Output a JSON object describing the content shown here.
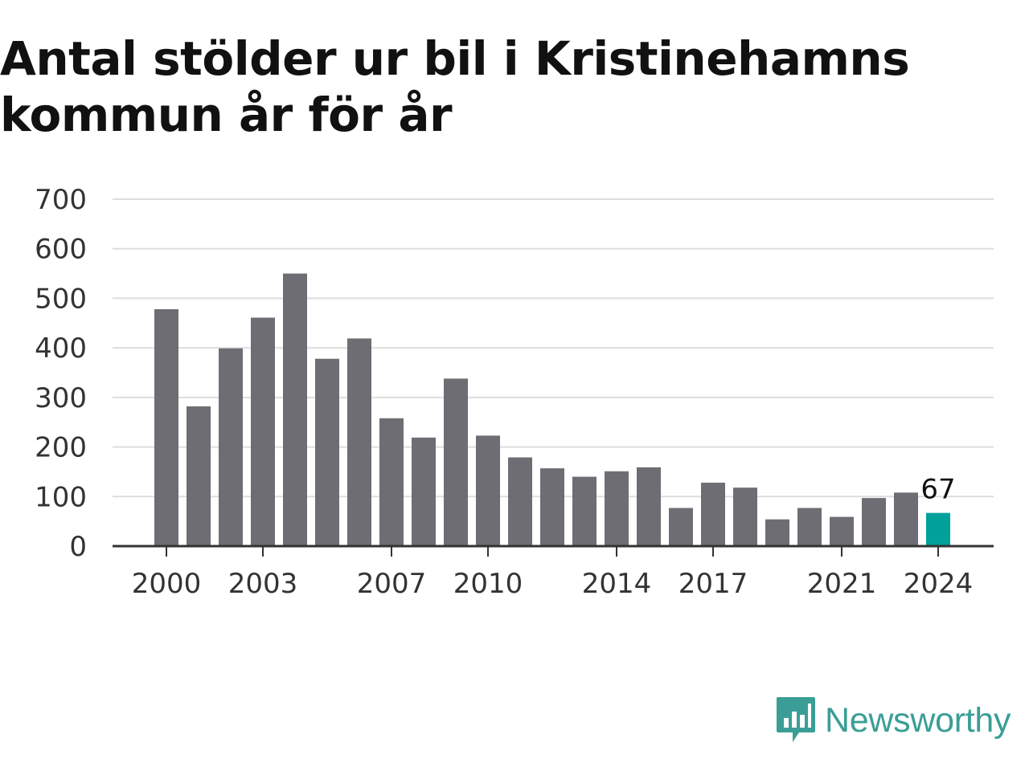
{
  "header": {
    "title": "Antal stölder ur bil i Kristinehamns kommun år för år"
  },
  "brand": {
    "name": "Newsworthy",
    "logo_icon": "newsworthy-chart-bubble-icon"
  },
  "colors": {
    "bar": "#6e6d73",
    "highlight": "#00a19a",
    "grid": "#dddddd",
    "axis": "#333333",
    "brand": "#3a9e96"
  },
  "chart_data": {
    "type": "bar",
    "title": "Antal stölder ur bil i Kristinehamns kommun år för år",
    "xlabel": "",
    "ylabel": "",
    "ylim": [
      0,
      700
    ],
    "yticks": [
      0,
      100,
      200,
      300,
      400,
      500,
      600,
      700
    ],
    "grid": true,
    "categories": [
      "2000",
      "2001",
      "2002",
      "2003",
      "2004",
      "2005",
      "2006",
      "2007",
      "2008",
      "2009",
      "2010",
      "2011",
      "2012",
      "2013",
      "2014",
      "2015",
      "2016",
      "2017",
      "2018",
      "2019",
      "2020",
      "2021",
      "2022",
      "2023",
      "2024"
    ],
    "xtick_labels": [
      "2000",
      "2003",
      "2007",
      "2010",
      "2014",
      "2017",
      "2021",
      "2024"
    ],
    "values": [
      478,
      282,
      399,
      461,
      550,
      378,
      419,
      258,
      219,
      338,
      223,
      179,
      157,
      140,
      151,
      159,
      77,
      128,
      118,
      54,
      77,
      59,
      97,
      108,
      67
    ],
    "highlight": {
      "category": "2024",
      "value": 67,
      "label": "67"
    }
  }
}
